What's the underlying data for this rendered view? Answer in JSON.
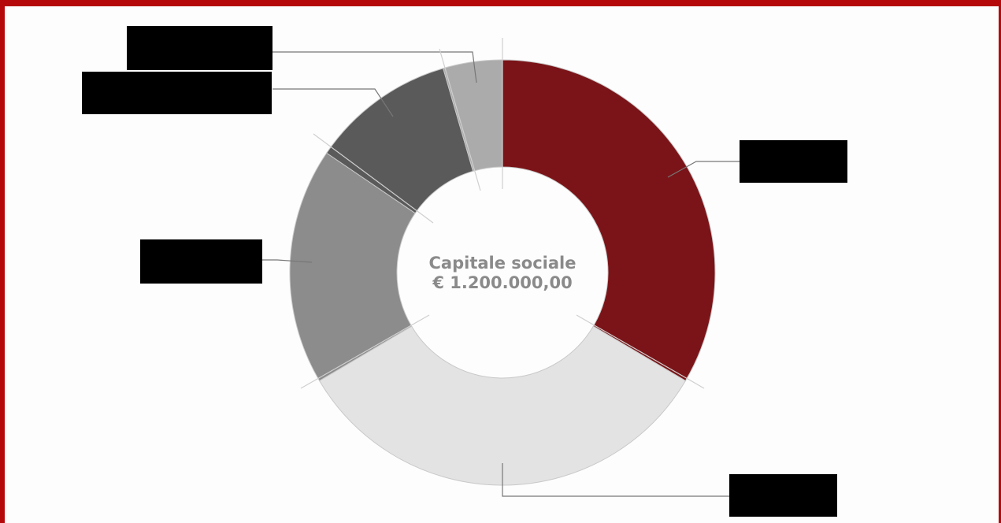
{
  "chart_data": {
    "type": "pie",
    "donut": true,
    "center_text": [
      "Capitale sociale",
      "€ 1.200.000,00"
    ],
    "slices": [
      {
        "value": 33.5,
        "color": "#7b1418"
      },
      {
        "value": 33.0,
        "color": "#e3e3e3"
      },
      {
        "value": 18.0,
        "color": "#8c8c8c"
      },
      {
        "value": 11.0,
        "color": "#5b5a5a"
      },
      {
        "value": 4.5,
        "color": "#ababab"
      }
    ]
  },
  "colors": {
    "frame": "#b5080b",
    "leader_line": "#777777",
    "redaction": "#000000"
  }
}
